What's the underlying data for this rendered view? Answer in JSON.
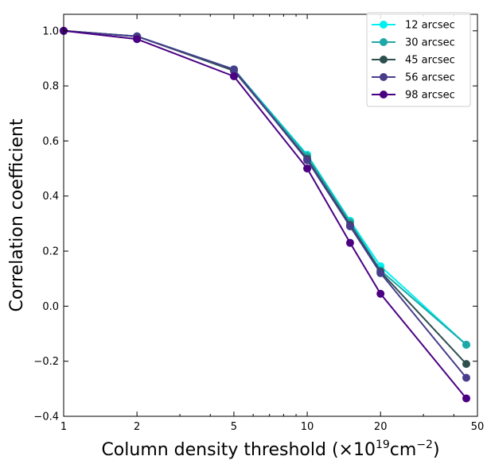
{
  "chart_data": {
    "type": "line",
    "xscale": "log",
    "xlim": [
      1,
      50
    ],
    "ylim": [
      -0.4,
      1.06
    ],
    "xticks": [
      1,
      2,
      5,
      10,
      20,
      50
    ],
    "xtick_labels": [
      "1",
      "2",
      "5",
      "10",
      "20",
      "50"
    ],
    "yticks": [
      -0.4,
      -0.2,
      0.0,
      0.2,
      0.4,
      0.6,
      0.8,
      1.0
    ],
    "ytick_labels": [
      "−0.4",
      "−0.2",
      "0.0",
      "0.2",
      "0.4",
      "0.6",
      "0.8",
      "1.0"
    ],
    "xlabel_main": "Column density threshold (×10",
    "xlabel_exp1": "19",
    "xlabel_mid": "cm",
    "xlabel_exp2": "−2",
    "xlabel_end": ")",
    "ylabel": "Correlation coefficient",
    "legend_position": "top-right",
    "grid": false,
    "x": [
      1,
      2,
      5,
      10,
      15,
      20,
      45
    ],
    "series": [
      {
        "name": "12 arcsec",
        "color": "#00f0f0",
        "values": [
          1.0,
          0.98,
          0.86,
          0.55,
          0.31,
          0.145,
          -0.14
        ]
      },
      {
        "name": "30 arcsec",
        "color": "#1fa8a8",
        "values": [
          1.0,
          0.98,
          0.86,
          0.545,
          0.305,
          0.13,
          -0.14
        ]
      },
      {
        "name": "45 arcsec",
        "color": "#2f4f4f",
        "values": [
          1.0,
          0.98,
          0.855,
          0.535,
          0.295,
          0.125,
          -0.21
        ]
      },
      {
        "name": "56 arcsec",
        "color": "#483d8b",
        "values": [
          1.0,
          0.98,
          0.86,
          0.53,
          0.29,
          0.12,
          -0.26
        ]
      },
      {
        "name": "98 arcsec",
        "color": "#4b0082",
        "values": [
          1.0,
          0.97,
          0.835,
          0.5,
          0.23,
          0.045,
          -0.335
        ]
      }
    ]
  }
}
